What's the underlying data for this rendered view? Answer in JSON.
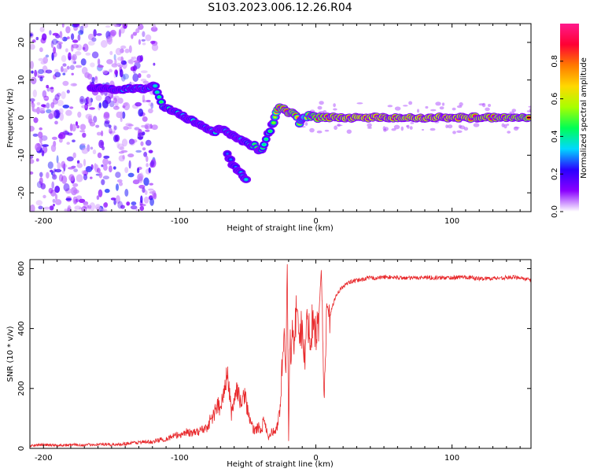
{
  "figure_title": "S103.2023.006.12.26.R04",
  "colors": {
    "snr_line": "#e8282b",
    "axis": "#000000",
    "spectrogram_background": "#ffffff"
  },
  "chart_data": [
    {
      "type": "heatmap",
      "name": "spectrogram",
      "xlabel": "Height of straight line (km)",
      "ylabel": "Frequency (Hz)",
      "xlim": [
        -210,
        158
      ],
      "ylim": [
        -25,
        25
      ],
      "x_ticks": [
        -200,
        -100,
        0,
        100
      ],
      "y_ticks": [
        -20,
        -10,
        0,
        10,
        20
      ],
      "grid": false,
      "ridge": {
        "description_units": "x: km, y: Hz, amplitude: normalized 0-1",
        "x": [
          -165,
          -150,
          -140,
          -130,
          -125,
          -118,
          -112,
          -105,
          -100,
          -95,
          -90,
          -85,
          -80,
          -75,
          -70,
          -65,
          -60,
          -55,
          -50,
          -45,
          -42,
          -40,
          -38,
          -35,
          -32,
          -30,
          -28,
          -25,
          -20,
          -15,
          -12,
          -10,
          -8,
          -5,
          0,
          10,
          20,
          40,
          60,
          80,
          100,
          120,
          140,
          158
        ],
        "y": [
          8,
          7.5,
          7.5,
          8,
          7.5,
          8.5,
          3,
          1.5,
          1,
          0,
          -1,
          -2,
          -3,
          -4,
          -3,
          -4,
          -5,
          -6,
          -7,
          -7.5,
          -9,
          -8.5,
          -7,
          -4.5,
          -2,
          0,
          2.5,
          2.5,
          1.5,
          1,
          -1.5,
          -0.5,
          0,
          0.5,
          0,
          0,
          0,
          0,
          0,
          0,
          0,
          0,
          0,
          0
        ],
        "amplitude": [
          0.15,
          0.25,
          0.35,
          0.3,
          0.35,
          0.3,
          0.4,
          0.35,
          0.35,
          0.3,
          0.35,
          0.3,
          0.35,
          0.35,
          0.3,
          0.3,
          0.3,
          0.3,
          0.35,
          0.4,
          0.45,
          0.4,
          0.35,
          0.35,
          0.4,
          0.5,
          0.8,
          0.85,
          0.9,
          0.8,
          0.5,
          0.45,
          0.55,
          0.7,
          0.8,
          0.9,
          0.92,
          0.95,
          0.9,
          0.95,
          0.95,
          0.9,
          0.9,
          0.85
        ]
      },
      "branch": {
        "x": [
          -65,
          -60,
          -55,
          -50
        ],
        "y": [
          -10,
          -13,
          -15,
          -17
        ],
        "amplitude": [
          0.2,
          0.2,
          0.25,
          0.3
        ]
      },
      "noise_region_x": [
        -210,
        -118
      ],
      "noise_region_y": [
        -25,
        25
      ]
    },
    {
      "type": "colorbar",
      "name": "spectral-amplitude-colorbar",
      "label": "Normalized spectral amplitude",
      "range": [
        0,
        1
      ],
      "ticks": [
        0.0,
        0.2,
        0.4,
        0.6,
        0.8
      ],
      "tick_labels": [
        "0.0",
        "0.2",
        "0.4",
        "0.6",
        "0.8"
      ],
      "colormap": [
        "#ffffff",
        "#8a00ff",
        "#2a00ff",
        "#00d8ff",
        "#00ff55",
        "#a8ff00",
        "#ffd800",
        "#ff7a00",
        "#ff0033",
        "#ff1a8c"
      ]
    },
    {
      "type": "line",
      "name": "snr",
      "xlabel": "Height of straight line (km)",
      "ylabel": "SNR (10 * v/v)",
      "xlim": [
        -210,
        158
      ],
      "ylim": [
        0,
        630
      ],
      "x_ticks": [
        -200,
        -100,
        0,
        100
      ],
      "y_ticks": [
        0,
        200,
        400,
        600
      ],
      "grid": false,
      "series": [
        {
          "x": [
            -210,
            -200,
            -190,
            -180,
            -170,
            -160,
            -150,
            -140,
            -130,
            -120,
            -115,
            -110,
            -105,
            -100,
            -95,
            -90,
            -85,
            -80,
            -78,
            -75,
            -72,
            -70,
            -68,
            -65,
            -62,
            -60,
            -58,
            -55,
            -52,
            -50,
            -48,
            -45,
            -42,
            -40,
            -38,
            -35,
            -32,
            -30,
            -28,
            -26,
            -25,
            -24,
            -23,
            -22,
            -21,
            -20,
            -19,
            -18,
            -17,
            -16,
            -15,
            -14,
            -12,
            -10,
            -8,
            -6,
            -4,
            -2,
            0,
            2,
            4,
            6,
            8,
            10,
            12,
            14,
            16,
            18,
            20,
            25,
            30,
            35,
            40,
            45,
            50,
            60,
            70,
            80,
            90,
            100,
            110,
            120,
            130,
            140,
            150,
            158
          ],
          "y": [
            10,
            12,
            10,
            12,
            11,
            14,
            12,
            16,
            20,
            22,
            28,
            32,
            40,
            45,
            55,
            50,
            60,
            70,
            90,
            110,
            150,
            120,
            180,
            250,
            120,
            160,
            200,
            150,
            180,
            130,
            80,
            60,
            70,
            60,
            100,
            30,
            60,
            50,
            80,
            150,
            260,
            330,
            350,
            300,
            620,
            20,
            390,
            300,
            440,
            350,
            400,
            470,
            420,
            380,
            300,
            450,
            350,
            460,
            380,
            420,
            600,
            160,
            480,
            440,
            470,
            500,
            520,
            530,
            540,
            555,
            560,
            565,
            570,
            568,
            572,
            570,
            568,
            571,
            569,
            570,
            572,
            566,
            568,
            570,
            571,
            560
          ]
        }
      ]
    }
  ]
}
